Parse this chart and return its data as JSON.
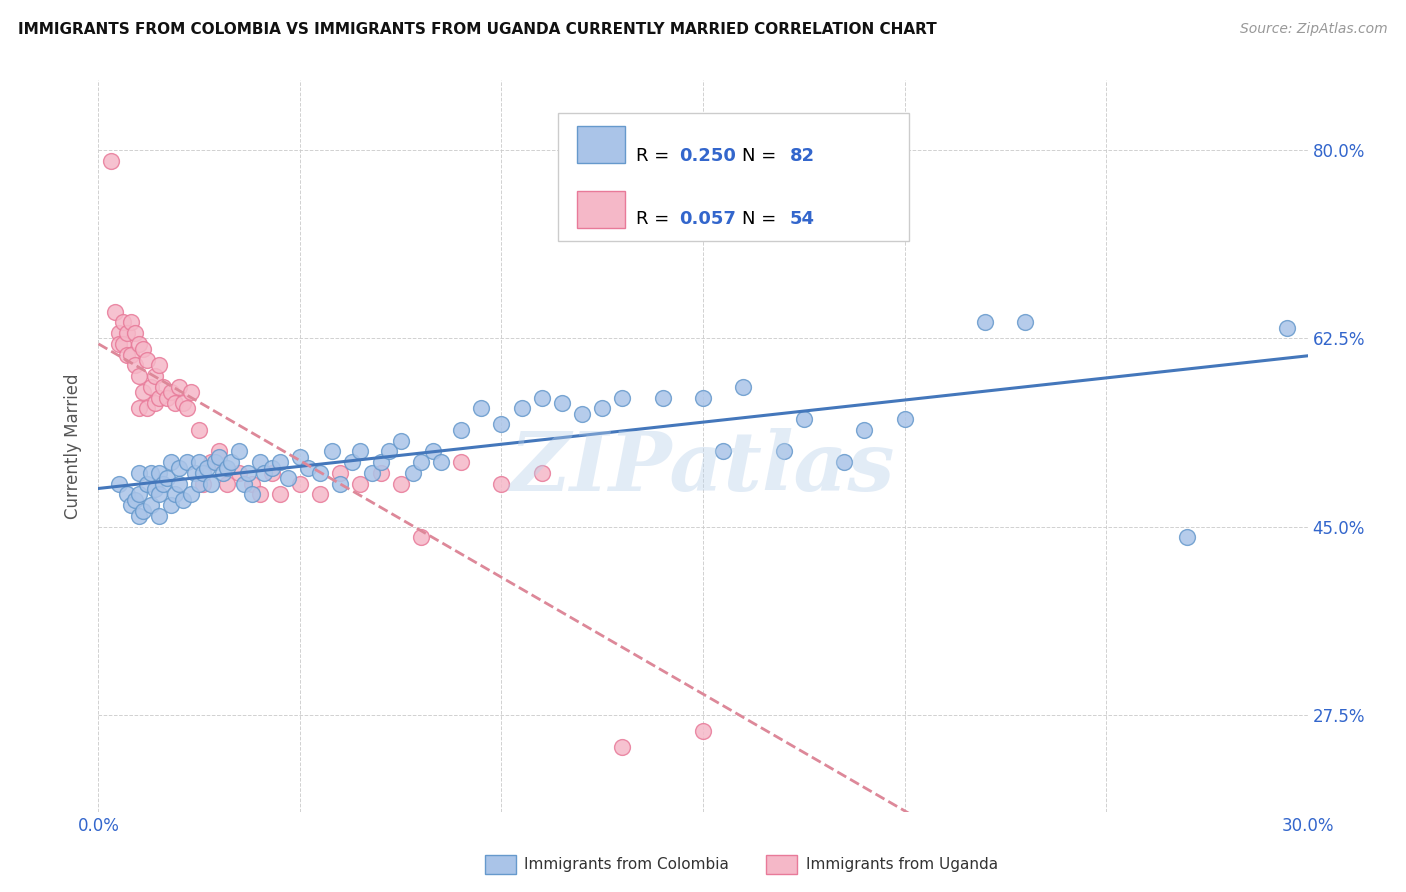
{
  "title": "IMMIGRANTS FROM COLOMBIA VS IMMIGRANTS FROM UGANDA CURRENTLY MARRIED CORRELATION CHART",
  "source": "Source: ZipAtlas.com",
  "ylabel": "Currently Married",
  "x_min": 0.0,
  "x_max": 0.3,
  "y_min": 0.185,
  "y_max": 0.865,
  "x_ticks": [
    0.0,
    0.05,
    0.1,
    0.15,
    0.2,
    0.25,
    0.3
  ],
  "y_ticks": [
    0.275,
    0.45,
    0.625,
    0.8
  ],
  "y_tick_labels": [
    "27.5%",
    "45.0%",
    "62.5%",
    "80.0%"
  ],
  "colombia_color": "#aac4e8",
  "colombia_edge": "#6699cc",
  "uganda_color": "#f5b8c8",
  "uganda_edge": "#e87a99",
  "colombia_R": 0.25,
  "colombia_N": 82,
  "uganda_R": 0.057,
  "uganda_N": 54,
  "line_color_colombia": "#4477bb",
  "line_color_uganda": "#dd8899",
  "watermark_text": "ZIPatlas",
  "colombia_scatter_x": [
    0.005,
    0.007,
    0.008,
    0.009,
    0.01,
    0.01,
    0.01,
    0.011,
    0.012,
    0.013,
    0.013,
    0.014,
    0.015,
    0.015,
    0.015,
    0.016,
    0.017,
    0.018,
    0.018,
    0.019,
    0.02,
    0.02,
    0.021,
    0.022,
    0.023,
    0.024,
    0.025,
    0.025,
    0.026,
    0.027,
    0.028,
    0.029,
    0.03,
    0.031,
    0.032,
    0.033,
    0.035,
    0.036,
    0.037,
    0.038,
    0.04,
    0.041,
    0.043,
    0.045,
    0.047,
    0.05,
    0.052,
    0.055,
    0.058,
    0.06,
    0.063,
    0.065,
    0.068,
    0.07,
    0.072,
    0.075,
    0.078,
    0.08,
    0.083,
    0.085,
    0.09,
    0.095,
    0.1,
    0.105,
    0.11,
    0.115,
    0.12,
    0.125,
    0.13,
    0.14,
    0.15,
    0.155,
    0.16,
    0.17,
    0.175,
    0.185,
    0.19,
    0.2,
    0.22,
    0.23,
    0.27,
    0.295
  ],
  "colombia_scatter_y": [
    0.49,
    0.48,
    0.47,
    0.475,
    0.5,
    0.48,
    0.46,
    0.465,
    0.49,
    0.5,
    0.47,
    0.485,
    0.5,
    0.48,
    0.46,
    0.49,
    0.495,
    0.51,
    0.47,
    0.48,
    0.505,
    0.49,
    0.475,
    0.51,
    0.48,
    0.5,
    0.51,
    0.49,
    0.5,
    0.505,
    0.49,
    0.51,
    0.515,
    0.5,
    0.505,
    0.51,
    0.52,
    0.49,
    0.5,
    0.48,
    0.51,
    0.5,
    0.505,
    0.51,
    0.495,
    0.515,
    0.505,
    0.5,
    0.52,
    0.49,
    0.51,
    0.52,
    0.5,
    0.51,
    0.52,
    0.53,
    0.5,
    0.51,
    0.52,
    0.51,
    0.54,
    0.56,
    0.545,
    0.56,
    0.57,
    0.565,
    0.555,
    0.56,
    0.57,
    0.57,
    0.57,
    0.52,
    0.58,
    0.52,
    0.55,
    0.51,
    0.54,
    0.55,
    0.64,
    0.64,
    0.44,
    0.635
  ],
  "uganda_scatter_x": [
    0.003,
    0.004,
    0.005,
    0.005,
    0.006,
    0.006,
    0.007,
    0.007,
    0.008,
    0.008,
    0.009,
    0.009,
    0.01,
    0.01,
    0.01,
    0.011,
    0.011,
    0.012,
    0.012,
    0.013,
    0.014,
    0.014,
    0.015,
    0.015,
    0.016,
    0.017,
    0.018,
    0.019,
    0.02,
    0.021,
    0.022,
    0.023,
    0.025,
    0.026,
    0.028,
    0.03,
    0.032,
    0.035,
    0.038,
    0.04,
    0.043,
    0.045,
    0.05,
    0.055,
    0.06,
    0.065,
    0.07,
    0.075,
    0.08,
    0.09,
    0.1,
    0.11,
    0.13,
    0.15
  ],
  "uganda_scatter_y": [
    0.79,
    0.65,
    0.63,
    0.62,
    0.64,
    0.62,
    0.63,
    0.61,
    0.64,
    0.61,
    0.63,
    0.6,
    0.62,
    0.59,
    0.56,
    0.615,
    0.575,
    0.605,
    0.56,
    0.58,
    0.59,
    0.565,
    0.6,
    0.57,
    0.58,
    0.57,
    0.575,
    0.565,
    0.58,
    0.565,
    0.56,
    0.575,
    0.54,
    0.49,
    0.51,
    0.52,
    0.49,
    0.5,
    0.49,
    0.48,
    0.5,
    0.48,
    0.49,
    0.48,
    0.5,
    0.49,
    0.5,
    0.49,
    0.44,
    0.51,
    0.49,
    0.5,
    0.245,
    0.26
  ]
}
